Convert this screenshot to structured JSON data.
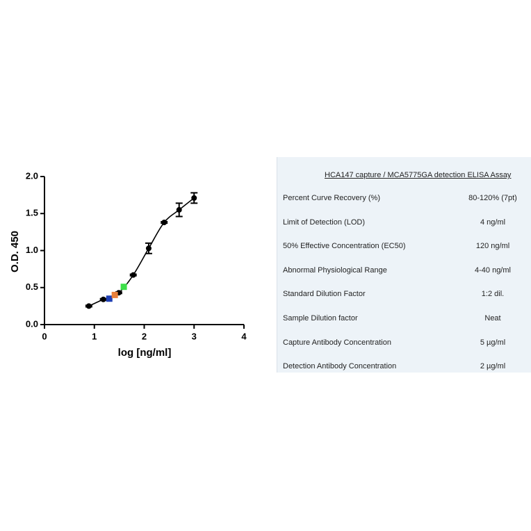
{
  "chart_data": {
    "type": "scatter",
    "xlabel": "log [ng/ml]",
    "ylabel": "O.D. 450",
    "xlim": [
      0,
      4
    ],
    "xticks": [
      0,
      1,
      2,
      3,
      4
    ],
    "ylim": [
      0,
      2
    ],
    "yticks": [
      {
        "value": 0,
        "label": "0.0"
      },
      0.5,
      {
        "value": 1,
        "label": "1.0"
      },
      1.5,
      {
        "value": 2,
        "label": "2.0"
      }
    ],
    "series": [
      {
        "color": "#000000",
        "marker": "circle",
        "line": true,
        "x": [
          0.89,
          1.18,
          1.49,
          1.78,
          2.09,
          2.4,
          2.7,
          3.0
        ],
        "values": [
          0.25,
          0.34,
          0.43,
          0.67,
          1.03,
          1.38,
          1.55,
          1.71
        ],
        "errors": [
          0.01,
          0.01,
          0.01,
          0.01,
          0.07,
          0.01,
          0.09,
          0.07
        ]
      },
      {
        "color": "#1f3fb4",
        "marker": "square",
        "x": [
          1.3
        ],
        "values": [
          0.35
        ]
      },
      {
        "color": "#e8803a",
        "marker": "square",
        "x": [
          1.41
        ],
        "values": [
          0.4
        ]
      },
      {
        "color": "#3de04a",
        "marker": "square",
        "x": [
          1.59
        ],
        "values": [
          0.51
        ]
      }
    ]
  },
  "table": {
    "title": "HCA147 capture / MCA5775GA detection ELISA Assay",
    "rows": [
      [
        "Percent Curve Recovery (%)",
        "80-120% (7pt)"
      ],
      [
        "Limit of Detection (LOD)",
        "4 ng/ml"
      ],
      [
        "50% Effective Concentration (EC50)",
        "120 ng/ml"
      ],
      [
        "Abnormal Physiological Range",
        "4-40 ng/ml"
      ],
      [
        "Standard Dilution Factor",
        "1:2 dil."
      ],
      [
        "Sample Dilution factor",
        "Neat"
      ],
      [
        "Capture Antibody Concentration",
        "5 µg/ml"
      ],
      [
        "Detection Antibody Concentration",
        "2 µg/ml"
      ]
    ]
  }
}
